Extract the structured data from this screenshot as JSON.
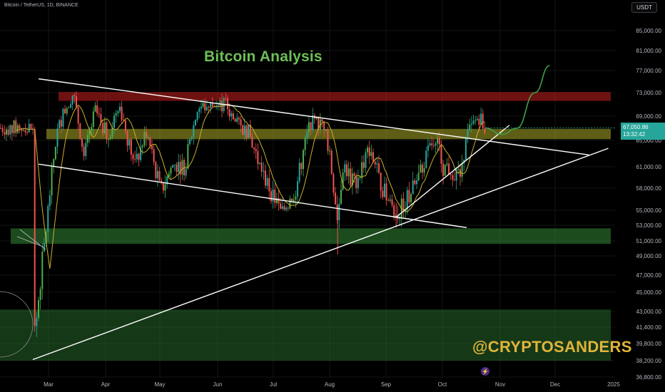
{
  "header": {
    "symbol": "Bitcoin / TetherUS, 1D, BINANCE",
    "currency_button": "USDT"
  },
  "annotations": {
    "title": "Bitcoin Analysis",
    "watermark": "@CRYPTOSANDERS"
  },
  "last_price": {
    "price": "67,050.86",
    "countdown": "13:32:42"
  },
  "price_axis": {
    "ticks": [
      {
        "value": 85000,
        "label": "85,000.00"
      },
      {
        "value": 81000,
        "label": "81,000.00"
      },
      {
        "value": 77000,
        "label": "77,000.00"
      },
      {
        "value": 73000,
        "label": "73,000.00"
      },
      {
        "value": 69000,
        "label": "69,000.00"
      },
      {
        "value": 65000,
        "label": "65,000.00"
      },
      {
        "value": 61000,
        "label": "61,000.00"
      },
      {
        "value": 58000,
        "label": "58,000.00"
      },
      {
        "value": 55000,
        "label": "55,000.00"
      },
      {
        "value": 53000,
        "label": "53,000.00"
      },
      {
        "value": 51000,
        "label": "51,000.00"
      },
      {
        "value": 49000,
        "label": "49,000.00"
      },
      {
        "value": 47000,
        "label": "47,000.00"
      },
      {
        "value": 45000,
        "label": "45,000.00"
      },
      {
        "value": 43000,
        "label": "43,000.00"
      },
      {
        "value": 41400,
        "label": "41,400.00"
      },
      {
        "value": 39800,
        "label": "39,800.00"
      },
      {
        "value": 38200,
        "label": "38,200.00"
      },
      {
        "value": 36800,
        "label": "36,800.00"
      }
    ]
  },
  "time_axis": {
    "labels": [
      "Mar",
      "Apr",
      "May",
      "Jun",
      "Jul",
      "Aug",
      "Sep",
      "Oct",
      "Nov",
      "Dec",
      "2025"
    ]
  },
  "colors": {
    "background": "#000000",
    "up": "#26a69a",
    "up_bright": "#4caf50",
    "down": "#ef5350",
    "resistance_zone": "#b71c1c",
    "pivot_zone": "#9e9d24",
    "support_zone": "#2e7d32",
    "moving_average": "#c9b02a",
    "projection": "#43a047",
    "trendline": "#ffffff",
    "last_price_tag": "#26a69a"
  },
  "chart_data": {
    "type": "candlestick",
    "symbol": "Bitcoin / TetherUS",
    "interval": "1D",
    "exchange": "BINANCE",
    "x_labels": [
      "Mar",
      "Apr",
      "May",
      "Jun",
      "Jul",
      "Aug",
      "Sep",
      "Oct",
      "Nov",
      "Dec",
      "2025"
    ],
    "ylim": [
      36800,
      87000
    ],
    "last_price": 67050.86,
    "zones": [
      {
        "kind": "resistance",
        "from": 71600,
        "to": 73100
      },
      {
        "kind": "pivot",
        "from": 65200,
        "to": 66900
      },
      {
        "kind": "support",
        "from": 50600,
        "to": 52600
      },
      {
        "kind": "support",
        "from": 38200,
        "to": 43200
      }
    ],
    "close_path": [
      [
        "Feb 22",
        39000
      ],
      [
        "Feb 28",
        51500
      ],
      [
        "Mar 5",
        66000
      ],
      [
        "Mar 8",
        69000
      ],
      [
        "Mar 14",
        73000
      ],
      [
        "Mar 20",
        62500
      ],
      [
        "Mar 26",
        70000
      ],
      [
        "Apr 2",
        65500
      ],
      [
        "Apr 8",
        71500
      ],
      [
        "Apr 13",
        65000
      ],
      [
        "Apr 17",
        61000
      ],
      [
        "Apr 23",
        66500
      ],
      [
        "May 1",
        57500
      ],
      [
        "May 8",
        61500
      ],
      [
        "May 14",
        61000
      ],
      [
        "May 21",
        70500
      ],
      [
        "Jun 5",
        71000
      ],
      [
        "Jun 11",
        67500
      ],
      [
        "Jun 17",
        66500
      ],
      [
        "Jun 24",
        60500
      ],
      [
        "Jul 5",
        54500
      ],
      [
        "Jul 13",
        58000
      ],
      [
        "Jul 21",
        68000
      ],
      [
        "Jul 29",
        67500
      ],
      [
        "Aug 5",
        54000
      ],
      [
        "Aug 8",
        61500
      ],
      [
        "Aug 14",
        58500
      ],
      [
        "Aug 23",
        64000
      ],
      [
        "Aug 28",
        59000
      ],
      [
        "Sep 6",
        54000
      ],
      [
        "Sep 16",
        58500
      ],
      [
        "Sep 27",
        65800
      ],
      [
        "Oct 1",
        61000
      ],
      [
        "Oct 10",
        60000
      ],
      [
        "Oct 14",
        66000
      ],
      [
        "Oct 20",
        69000
      ],
      [
        "Oct 24",
        67050
      ]
    ],
    "projection": [
      [
        "Oct 24",
        67050
      ],
      [
        "Nov 2",
        66000
      ],
      [
        "Nov 10",
        67000
      ],
      [
        "Nov 20",
        73000
      ],
      [
        "Nov 28",
        78000
      ]
    ]
  }
}
